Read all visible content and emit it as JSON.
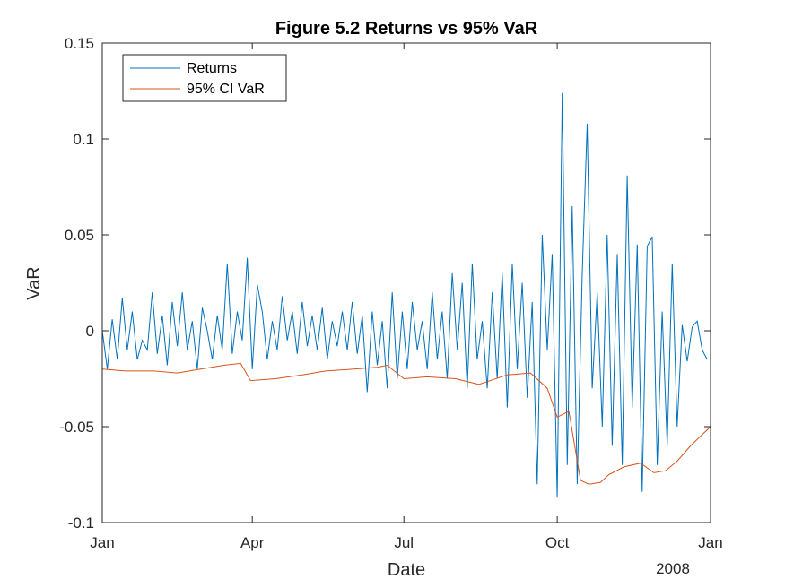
{
  "chart_data": {
    "type": "line",
    "title": "Figure 5.2 Returns vs 95% VaR",
    "xlabel": "Date",
    "ylabel": "VaR",
    "xlim": [
      "2007-01-01",
      "2008-01-01"
    ],
    "ylim": [
      -0.1,
      0.15
    ],
    "x_ticks": [
      "Jan",
      "Apr",
      "Jul",
      "Oct",
      "Jan"
    ],
    "x_tick_dates": [
      "2007-01-01",
      "2007-04-01",
      "2007-07-01",
      "2007-10-01",
      "2008-01-01"
    ],
    "x_secondary_label": "2008",
    "y_ticks": [
      0.15,
      0.1,
      0.05,
      0,
      -0.05,
      -0.1
    ],
    "y_tick_labels": [
      "0.15",
      "0.1",
      "0.05",
      "0",
      "-0.05",
      "-0.1"
    ],
    "grid": false,
    "legend": {
      "placement": "top-left",
      "entries": [
        "Returns",
        "95% CI VaR"
      ]
    },
    "series": [
      {
        "name": "Returns",
        "color": "#0072BD",
        "x": [
          "2007-01-01",
          "2007-01-04",
          "2007-01-07",
          "2007-01-10",
          "2007-01-13",
          "2007-01-16",
          "2007-01-19",
          "2007-01-22",
          "2007-01-25",
          "2007-01-28",
          "2007-01-31",
          "2007-02-03",
          "2007-02-06",
          "2007-02-09",
          "2007-02-12",
          "2007-02-15",
          "2007-02-18",
          "2007-02-21",
          "2007-02-24",
          "2007-02-27",
          "2007-03-02",
          "2007-03-05",
          "2007-03-08",
          "2007-03-11",
          "2007-03-14",
          "2007-03-17",
          "2007-03-20",
          "2007-03-23",
          "2007-03-26",
          "2007-03-29",
          "2007-04-01",
          "2007-04-04",
          "2007-04-07",
          "2007-04-10",
          "2007-04-13",
          "2007-04-16",
          "2007-04-19",
          "2007-04-22",
          "2007-04-25",
          "2007-04-28",
          "2007-05-01",
          "2007-05-04",
          "2007-05-07",
          "2007-05-10",
          "2007-05-13",
          "2007-05-16",
          "2007-05-19",
          "2007-05-22",
          "2007-05-25",
          "2007-05-28",
          "2007-05-31",
          "2007-06-03",
          "2007-06-06",
          "2007-06-09",
          "2007-06-12",
          "2007-06-15",
          "2007-06-18",
          "2007-06-21",
          "2007-06-24",
          "2007-06-27",
          "2007-06-30",
          "2007-07-03",
          "2007-07-06",
          "2007-07-09",
          "2007-07-12",
          "2007-07-15",
          "2007-07-18",
          "2007-07-21",
          "2007-07-24",
          "2007-07-27",
          "2007-07-30",
          "2007-08-02",
          "2007-08-05",
          "2007-08-08",
          "2007-08-11",
          "2007-08-14",
          "2007-08-17",
          "2007-08-20",
          "2007-08-23",
          "2007-08-26",
          "2007-08-29",
          "2007-09-01",
          "2007-09-04",
          "2007-09-07",
          "2007-09-10",
          "2007-09-13",
          "2007-09-16",
          "2007-09-19",
          "2007-09-22",
          "2007-09-25",
          "2007-09-28",
          "2007-10-01",
          "2007-10-04",
          "2007-10-07",
          "2007-10-10",
          "2007-10-13",
          "2007-10-16",
          "2007-10-19",
          "2007-10-22",
          "2007-10-25",
          "2007-10-28",
          "2007-10-31",
          "2007-11-03",
          "2007-11-06",
          "2007-11-09",
          "2007-11-12",
          "2007-11-15",
          "2007-11-18",
          "2007-11-21",
          "2007-11-24",
          "2007-11-27",
          "2007-11-30",
          "2007-12-03",
          "2007-12-06",
          "2007-12-09",
          "2007-12-12",
          "2007-12-15",
          "2007-12-18",
          "2007-12-21",
          "2007-12-24",
          "2007-12-27",
          "2007-12-30"
        ],
        "y": [
          0.0,
          -0.02,
          0.006,
          -0.015,
          0.017,
          -0.01,
          0.01,
          -0.015,
          -0.005,
          -0.01,
          0.02,
          -0.012,
          0.008,
          -0.018,
          0.015,
          -0.008,
          0.02,
          -0.01,
          0.005,
          -0.02,
          0.012,
          0.0,
          -0.015,
          0.008,
          -0.01,
          0.035,
          -0.012,
          0.01,
          -0.005,
          0.038,
          -0.02,
          0.024,
          0.01,
          -0.015,
          0.005,
          -0.01,
          0.018,
          -0.005,
          0.01,
          -0.012,
          0.015,
          -0.008,
          0.008,
          -0.01,
          0.012,
          -0.015,
          0.005,
          -0.008,
          0.01,
          -0.01,
          0.015,
          -0.012,
          0.008,
          -0.032,
          0.01,
          -0.018,
          0.005,
          -0.03,
          0.02,
          -0.025,
          0.01,
          -0.02,
          0.015,
          -0.01,
          0.005,
          -0.02,
          0.02,
          -0.015,
          0.01,
          -0.025,
          0.03,
          -0.01,
          0.025,
          -0.03,
          0.035,
          -0.015,
          0.005,
          -0.03,
          0.02,
          -0.025,
          0.03,
          -0.04,
          0.035,
          -0.02,
          0.025,
          -0.035,
          0.015,
          -0.08,
          0.05,
          -0.01,
          0.04,
          -0.087,
          0.124,
          -0.07,
          0.065,
          -0.08,
          0.03,
          0.108,
          -0.03,
          0.02,
          -0.05,
          0.05,
          -0.06,
          0.04,
          -0.07,
          0.081,
          -0.04,
          0.045,
          -0.084,
          0.044,
          0.049,
          -0.07,
          0.01,
          -0.06,
          0.035,
          -0.05,
          0.003,
          -0.016,
          0.002,
          0.005,
          -0.01,
          -0.015
        ]
      },
      {
        "name": "95% CI VaR",
        "color": "#D95319",
        "x": [
          "2007-01-01",
          "2007-01-15",
          "2007-02-01",
          "2007-02-15",
          "2007-03-01",
          "2007-03-15",
          "2007-03-25",
          "2007-03-31",
          "2007-04-15",
          "2007-05-01",
          "2007-05-15",
          "2007-06-01",
          "2007-06-15",
          "2007-06-21",
          "2007-07-01",
          "2007-07-15",
          "2007-08-01",
          "2007-08-15",
          "2007-09-01",
          "2007-09-15",
          "2007-09-25",
          "2007-10-01",
          "2007-10-08",
          "2007-10-15",
          "2007-10-20",
          "2007-10-27",
          "2007-11-01",
          "2007-11-10",
          "2007-11-20",
          "2007-11-28",
          "2007-12-05",
          "2007-12-12",
          "2007-12-20",
          "2008-01-01"
        ],
        "y": [
          -0.02,
          -0.021,
          -0.021,
          -0.022,
          -0.02,
          -0.018,
          -0.017,
          -0.026,
          -0.025,
          -0.023,
          -0.021,
          -0.02,
          -0.019,
          -0.018,
          -0.025,
          -0.024,
          -0.025,
          -0.028,
          -0.023,
          -0.022,
          -0.03,
          -0.045,
          -0.042,
          -0.078,
          -0.08,
          -0.079,
          -0.075,
          -0.071,
          -0.069,
          -0.074,
          -0.073,
          -0.068,
          -0.06,
          -0.05
        ]
      }
    ]
  }
}
